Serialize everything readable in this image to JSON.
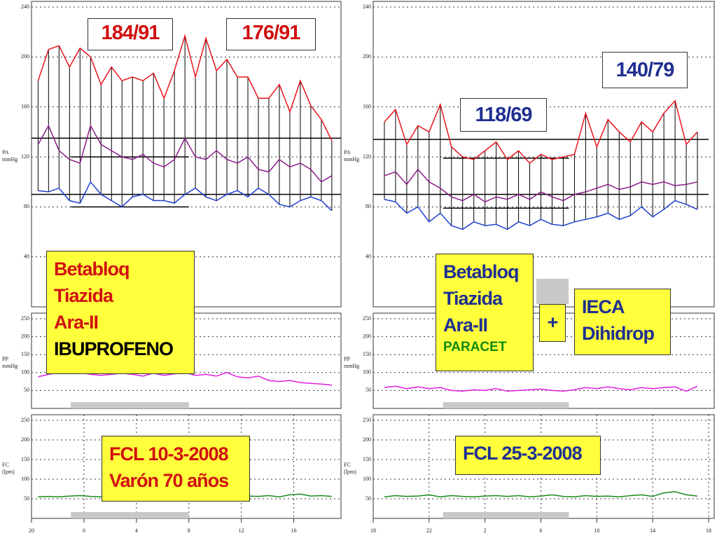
{
  "chart_data": [
    {
      "type": "line",
      "ylabel": "PA",
      "yunit": "mmHg",
      "xlim": [
        0,
        23.6
      ],
      "ylim": [
        0,
        240
      ],
      "yticks": [
        40,
        80,
        120,
        160,
        200,
        240
      ],
      "x": [
        0.5,
        1.3,
        2.1,
        2.9,
        3.7,
        4.5,
        5.3,
        6.1,
        6.9,
        7.7,
        8.5,
        9.3,
        10.1,
        10.9,
        11.7,
        12.5,
        13.3,
        14.1,
        14.9,
        15.7,
        16.5,
        17.3,
        18.1,
        18.9,
        19.7,
        20.5,
        21.3,
        22.1,
        22.9
      ],
      "series": [
        {
          "color": "#e8141e",
          "values": [
            181,
            206,
            209,
            192,
            207,
            200,
            178,
            192,
            181,
            184,
            181,
            187,
            167,
            189,
            217,
            184,
            215,
            189,
            198,
            184,
            184,
            167,
            167,
            178,
            156,
            181,
            161,
            150,
            133
          ]
        },
        {
          "color": "#8b1a8b",
          "values": [
            130,
            145,
            125,
            118,
            115,
            145,
            130,
            125,
            120,
            118,
            122,
            115,
            112,
            118,
            135,
            120,
            118,
            125,
            118,
            115,
            120,
            110,
            108,
            118,
            112,
            115,
            110,
            100,
            105
          ]
        },
        {
          "color": "#1f3fd0",
          "values": [
            93,
            92,
            95,
            85,
            83,
            100,
            90,
            85,
            80,
            88,
            90,
            85,
            85,
            83,
            90,
            95,
            88,
            85,
            90,
            93,
            88,
            95,
            90,
            82,
            80,
            85,
            88,
            85,
            77
          ]
        }
      ],
      "reference_lines": [
        {
          "y": 135,
          "x": [
            0,
            23.6
          ]
        },
        {
          "y": 90,
          "x": [
            0,
            23.6
          ]
        },
        {
          "y": 120,
          "x": [
            3,
            12
          ]
        },
        {
          "y": 80,
          "x": [
            3,
            12
          ]
        }
      ],
      "annotations": [
        {
          "text": "184/91",
          "color": "#d01010"
        },
        {
          "text": "176/91",
          "color": "#d01010"
        }
      ],
      "boxes": [
        {
          "lines": [
            {
              "text": "Betabloq",
              "color": "#d01010"
            },
            {
              "text": "Tiazida",
              "color": "#d01010"
            },
            {
              "text": "Ara-II",
              "color": "#d01010"
            },
            {
              "text": "IBUPROFENO",
              "color": "#000000"
            }
          ]
        }
      ]
    },
    {
      "type": "line",
      "ylabel": "PP",
      "yunit": "mmHg",
      "xlim": [
        0,
        23.6
      ],
      "ylim": [
        0,
        250
      ],
      "yticks": [
        50,
        100,
        150,
        200,
        250
      ],
      "night": [
        3,
        12
      ],
      "x": [
        0.5,
        1.3,
        2.1,
        2.9,
        3.7,
        4.5,
        5.3,
        6.1,
        6.9,
        7.7,
        8.5,
        9.3,
        10.1,
        10.9,
        11.7,
        12.5,
        13.3,
        14.1,
        14.9,
        15.7,
        16.5,
        17.3,
        18.1,
        18.9,
        19.7,
        20.5,
        21.3,
        22.1,
        22.9
      ],
      "color": "#e020e0",
      "values": [
        88,
        95,
        100,
        98,
        100,
        95,
        92,
        95,
        98,
        95,
        90,
        98,
        92,
        96,
        100,
        92,
        95,
        90,
        100,
        88,
        85,
        90,
        78,
        75,
        78,
        72,
        70,
        68,
        65
      ]
    },
    {
      "type": "line",
      "ylabel": "FC",
      "yunit": "(lpm)",
      "xlim": [
        0,
        23.6
      ],
      "ylim": [
        0,
        250
      ],
      "yticks": [
        50,
        100,
        150,
        200,
        250
      ],
      "night": [
        3,
        12
      ],
      "xticks": [
        {
          "value": 0,
          "label": "20"
        },
        {
          "value": 4,
          "label": "0"
        },
        {
          "value": 8,
          "label": "4"
        },
        {
          "value": 12,
          "label": "8"
        },
        {
          "value": 16,
          "label": "12"
        },
        {
          "value": 20,
          "label": "16"
        }
      ],
      "x": [
        0.5,
        1.3,
        2.1,
        2.9,
        3.7,
        4.5,
        5.3,
        6.1,
        6.9,
        7.7,
        8.5,
        9.3,
        10.1,
        10.9,
        11.7,
        12.5,
        13.3,
        14.1,
        14.9,
        15.7,
        16.5,
        17.3,
        18.1,
        18.9,
        19.7,
        20.5,
        21.3,
        22.1,
        22.9
      ],
      "color": "#1a8a1a",
      "values": [
        55,
        56,
        55,
        57,
        58,
        56,
        55,
        57,
        56,
        55,
        58,
        60,
        56,
        55,
        57,
        56,
        55,
        58,
        56,
        55,
        57,
        56,
        58,
        55,
        60,
        62,
        57,
        58,
        56
      ],
      "boxes": [
        {
          "lines": [
            {
              "text": "FCL 10-3-2008",
              "color": "#d01010"
            },
            {
              "text": "Varón 70 años",
              "color": "#d01010"
            }
          ]
        }
      ]
    },
    {
      "type": "line",
      "ylabel": "PA",
      "yunit": "mmHg",
      "xlim": [
        0,
        24.4
      ],
      "ylim": [
        0,
        240
      ],
      "yticks": [
        40,
        80,
        120,
        160,
        200,
        240
      ],
      "x": [
        0.8,
        1.6,
        2.4,
        3.2,
        4,
        4.8,
        5.6,
        6.4,
        7.2,
        8,
        8.8,
        9.6,
        10.4,
        11.2,
        12,
        12.8,
        13.6,
        14.4,
        15.2,
        16,
        16.8,
        17.6,
        18.4,
        19.2,
        20,
        20.8,
        21.6,
        22.4,
        23.2
      ],
      "series": [
        {
          "color": "#e8141e",
          "values": [
            148,
            158,
            130,
            145,
            140,
            162,
            128,
            120,
            118,
            125,
            132,
            118,
            125,
            115,
            122,
            118,
            120,
            122,
            155,
            128,
            150,
            140,
            132,
            148,
            140,
            155,
            165,
            130,
            140
          ]
        },
        {
          "color": "#8b1a8b",
          "values": [
            105,
            108,
            98,
            110,
            100,
            95,
            88,
            85,
            90,
            84,
            88,
            86,
            90,
            86,
            92,
            88,
            85,
            90,
            92,
            95,
            98,
            94,
            96,
            100,
            98,
            100,
            97,
            98,
            100
          ]
        },
        {
          "color": "#1f3fd0",
          "values": [
            86,
            84,
            75,
            80,
            68,
            75,
            65,
            62,
            68,
            65,
            66,
            62,
            68,
            65,
            70,
            66,
            65,
            68,
            70,
            72,
            75,
            70,
            73,
            80,
            72,
            78,
            85,
            82,
            78
          ]
        }
      ],
      "reference_lines": [
        {
          "y": 134,
          "x": [
            0,
            24
          ]
        },
        {
          "y": 90,
          "x": [
            0,
            24
          ]
        },
        {
          "y": 119,
          "x": [
            5,
            14
          ]
        },
        {
          "y": 79,
          "x": [
            5,
            14
          ]
        }
      ],
      "annotations": [
        {
          "text": "140/79",
          "color": "#203090"
        },
        {
          "text": "118/69",
          "color": "#203090"
        }
      ],
      "boxes": [
        {
          "lines": [
            {
              "text": "Betabloq",
              "color": "#203090"
            },
            {
              "text": "Tiazida",
              "color": "#203090"
            },
            {
              "text": "Ara-II",
              "color": "#203090"
            },
            {
              "text": "PARACET",
              "color": "#128a12"
            }
          ]
        },
        {
          "lines": [
            {
              "text": "+",
              "color": "#203090"
            }
          ]
        },
        {
          "lines": [
            {
              "text": "IECA",
              "color": "#203090"
            },
            {
              "text": "Dihidrop",
              "color": "#203090"
            }
          ]
        }
      ]
    },
    {
      "type": "line",
      "ylabel": "PP",
      "yunit": "mmHg",
      "xlim": [
        0,
        24.4
      ],
      "ylim": [
        0,
        250
      ],
      "yticks": [
        50,
        100,
        150,
        200,
        250
      ],
      "night": [
        5,
        14
      ],
      "x": [
        0.8,
        1.6,
        2.4,
        3.2,
        4,
        4.8,
        5.6,
        6.4,
        7.2,
        8,
        8.8,
        9.6,
        10.4,
        11.2,
        12,
        12.8,
        13.6,
        14.4,
        15.2,
        16,
        16.8,
        17.6,
        18.4,
        19.2,
        20,
        20.8,
        21.6,
        22.4,
        23.2
      ],
      "color": "#e020e0",
      "values": [
        58,
        62,
        55,
        60,
        55,
        58,
        50,
        48,
        52,
        50,
        55,
        48,
        50,
        52,
        54,
        50,
        48,
        52,
        58,
        55,
        60,
        55,
        52,
        58,
        55,
        58,
        60,
        48,
        62
      ]
    },
    {
      "type": "line",
      "ylabel": "FC",
      "yunit": "(lpm)",
      "xlim": [
        0,
        24.4
      ],
      "ylim": [
        0,
        250
      ],
      "yticks": [
        50,
        100,
        150,
        200,
        250
      ],
      "night": [
        5,
        14
      ],
      "xticks": [
        {
          "value": 0,
          "label": "18"
        },
        {
          "value": 4,
          "label": "22"
        },
        {
          "value": 8,
          "label": "2"
        },
        {
          "value": 12,
          "label": "6"
        },
        {
          "value": 16,
          "label": "10"
        },
        {
          "value": 20,
          "label": "14"
        },
        {
          "value": 24,
          "label": "18"
        }
      ],
      "x": [
        0.8,
        1.6,
        2.4,
        3.2,
        4,
        4.8,
        5.6,
        6.4,
        7.2,
        8,
        8.8,
        9.6,
        10.4,
        11.2,
        12,
        12.8,
        13.6,
        14.4,
        15.2,
        16,
        16.8,
        17.6,
        18.4,
        19.2,
        20,
        20.8,
        21.6,
        22.4,
        23.2
      ],
      "color": "#1a8a1a",
      "values": [
        55,
        58,
        56,
        57,
        60,
        55,
        58,
        56,
        55,
        57,
        58,
        56,
        58,
        55,
        57,
        60,
        56,
        55,
        58,
        56,
        57,
        55,
        58,
        60,
        56,
        65,
        68,
        60,
        57
      ],
      "boxes": [
        {
          "lines": [
            {
              "text": "FCL 25-3-2008",
              "color": "#203090"
            }
          ]
        }
      ]
    }
  ]
}
